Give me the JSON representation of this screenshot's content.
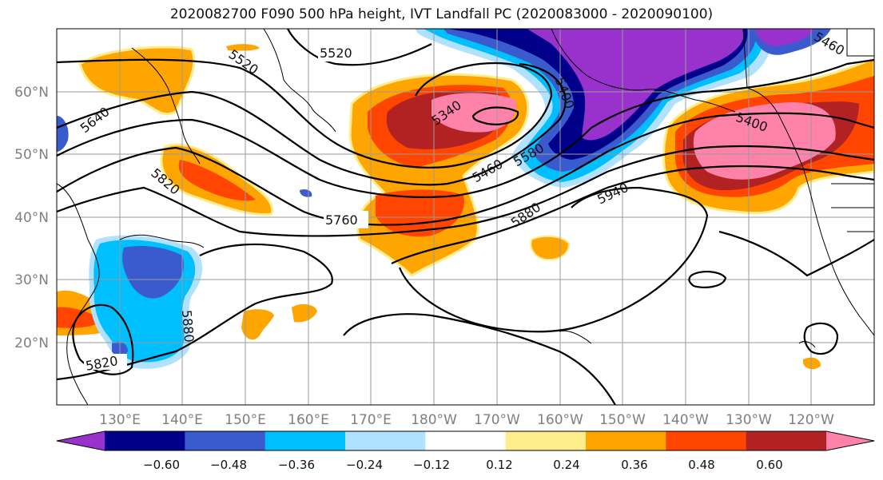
{
  "title": "2020082700 F090 500 hPa height, IVT Landfall PC (2020083000 - 2020090100)",
  "longitude_labels": [
    "130°E",
    "140°E",
    "150°E",
    "160°E",
    "170°E",
    "180°W",
    "170°W",
    "160°W",
    "150°W",
    "140°W",
    "130°W",
    "120°W"
  ],
  "latitude_labels": [
    "60°N",
    "50°N",
    "40°N",
    "30°N",
    "20°N"
  ],
  "colorbar": {
    "tick_labels": [
      "−0.60",
      "−0.48",
      "−0.36",
      "−0.24",
      "−0.12",
      "0.12",
      "0.24",
      "0.36",
      "0.48",
      "0.60"
    ],
    "colors": [
      "#9932CC",
      "#00008B",
      "#3A5BCD",
      "#00BFFF",
      "#B0E2FF",
      "#FFFFFF",
      "#FFEC8B",
      "#FFA500",
      "#FF4500",
      "#B22222",
      "#FF82AB"
    ]
  },
  "contour_labels": [
    "5520",
    "5520",
    "5640",
    "5460",
    "5340",
    "5400",
    "5460",
    "5580",
    "5400",
    "5820",
    "5760",
    "5880",
    "5940",
    "5880",
    "5820"
  ]
}
